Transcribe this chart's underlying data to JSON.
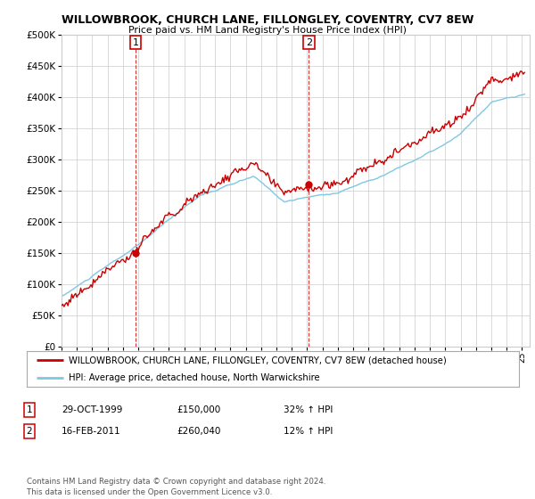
{
  "title": "WILLOWBROOK, CHURCH LANE, FILLONGLEY, COVENTRY, CV7 8EW",
  "subtitle": "Price paid vs. HM Land Registry's House Price Index (HPI)",
  "ytick_vals": [
    0,
    50000,
    100000,
    150000,
    200000,
    250000,
    300000,
    350000,
    400000,
    450000,
    500000
  ],
  "ylim": [
    0,
    500000
  ],
  "xlim_start": 1995.0,
  "xlim_end": 2025.5,
  "hpi_color": "#7ec8e3",
  "price_color": "#cc0000",
  "sale1_x": 1999.83,
  "sale1_y": 150000,
  "sale2_x": 2011.12,
  "sale2_y": 260040,
  "legend_label_price": "WILLOWBROOK, CHURCH LANE, FILLONGLEY, COVENTRY, CV7 8EW (detached house)",
  "legend_label_hpi": "HPI: Average price, detached house, North Warwickshire",
  "table_rows": [
    {
      "num": "1",
      "date": "29-OCT-1999",
      "price": "£150,000",
      "hpi": "32% ↑ HPI"
    },
    {
      "num": "2",
      "date": "16-FEB-2011",
      "price": "£260,040",
      "hpi": "12% ↑ HPI"
    }
  ],
  "footnote": "Contains HM Land Registry data © Crown copyright and database right 2024.\nThis data is licensed under the Open Government Licence v3.0.",
  "bg_color": "#ffffff",
  "grid_color": "#cccccc",
  "xtick_years": [
    1995,
    1996,
    1997,
    1998,
    1999,
    2000,
    2001,
    2002,
    2003,
    2004,
    2005,
    2006,
    2007,
    2008,
    2009,
    2010,
    2011,
    2012,
    2013,
    2014,
    2015,
    2016,
    2017,
    2018,
    2019,
    2020,
    2021,
    2022,
    2023,
    2024,
    2025
  ]
}
